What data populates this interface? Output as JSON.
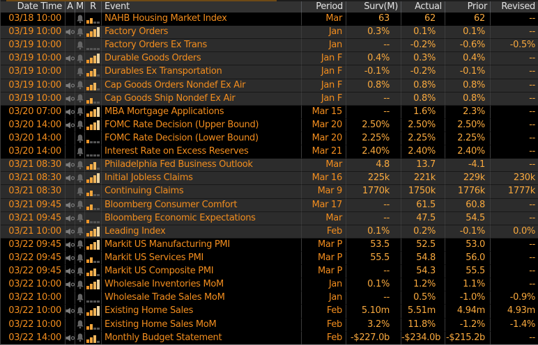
{
  "colors": {
    "background": "#000000",
    "row_alt": "#2c2c2c",
    "header_bg": "#323232",
    "header_text": "#e2e2e2",
    "label_orange": "#f28d1e",
    "value_amber": "#f9a93e",
    "relevance_bar_colors": [
      "#f09526",
      "#f2a73e",
      "#f0b65c",
      "#ecd3a0"
    ],
    "relevance_unlit": "#555555",
    "icon_gray": "#7a7a7a",
    "top_strip_brown": "#6e4a15"
  },
  "icons": {
    "muted_speaker": "muted-speaker-icon",
    "alarm_bell": "alarm-bell-icon",
    "relevance": "relevance-bars-icon"
  },
  "table": {
    "columns": [
      "Date Time",
      "A",
      "M",
      "R",
      "Event",
      "Period",
      "Surv(M)",
      "Actual",
      "Prior",
      "Revised"
    ],
    "rows": [
      {
        "date_time": "03/18 10:00",
        "speaker": false,
        "bell": true,
        "relevance": 2,
        "event": "NAHB Housing Market Index",
        "period": "Mar",
        "surv": "63",
        "actual": "62",
        "prior": "62",
        "revised": "--",
        "shade": "dark"
      },
      {
        "date_time": "03/19 10:00",
        "speaker": true,
        "bell": true,
        "relevance": 4,
        "event": "Factory Orders",
        "period": "Jan",
        "surv": "0.3%",
        "actual": "0.1%",
        "prior": "0.1%",
        "revised": "--",
        "shade": "light"
      },
      {
        "date_time": "03/19 10:00",
        "speaker": false,
        "bell": true,
        "relevance": 0,
        "event": "Factory Orders Ex Trans",
        "period": "Jan",
        "surv": "--",
        "actual": "-0.2%",
        "prior": "-0.6%",
        "revised": "-0.5%",
        "shade": "light"
      },
      {
        "date_time": "03/19 10:00",
        "speaker": true,
        "bell": true,
        "relevance": 4,
        "event": "Durable Goods Orders",
        "period": "Jan F",
        "surv": "0.4%",
        "actual": "0.3%",
        "prior": "0.4%",
        "revised": "--",
        "shade": "light"
      },
      {
        "date_time": "03/19 10:00",
        "speaker": false,
        "bell": true,
        "relevance": 3,
        "event": "Durables Ex Transportation",
        "period": "Jan F",
        "surv": "-0.1%",
        "actual": "-0.2%",
        "prior": "-0.1%",
        "revised": "--",
        "shade": "light"
      },
      {
        "date_time": "03/19 10:00",
        "speaker": true,
        "bell": true,
        "relevance": 3,
        "event": "Cap Goods Orders Nondef Ex Air",
        "period": "Jan F",
        "surv": "0.8%",
        "actual": "0.8%",
        "prior": "0.8%",
        "revised": "--",
        "shade": "light"
      },
      {
        "date_time": "03/19 10:00",
        "speaker": true,
        "bell": true,
        "relevance": 2,
        "event": "Cap Goods Ship Nondef Ex Air",
        "period": "Jan F",
        "surv": "--",
        "actual": "0.8%",
        "prior": "0.8%",
        "revised": "--",
        "shade": "light"
      },
      {
        "date_time": "03/20 07:00",
        "speaker": true,
        "bell": true,
        "relevance": 4,
        "event": "MBA Mortgage Applications",
        "period": "Mar 15",
        "surv": "--",
        "actual": "1.6%",
        "prior": "2.3%",
        "revised": "--",
        "shade": "dark"
      },
      {
        "date_time": "03/20 14:00",
        "speaker": true,
        "bell": true,
        "relevance": 4,
        "event": "FOMC Rate Decision (Upper Bound)",
        "period": "Mar 20",
        "surv": "2.50%",
        "actual": "2.50%",
        "prior": "2.50%",
        "revised": "--",
        "shade": "dark"
      },
      {
        "date_time": "03/20 14:00",
        "speaker": false,
        "bell": true,
        "relevance": 1,
        "event": "FOMC Rate Decision (Lower Bound)",
        "period": "Mar 20",
        "surv": "2.25%",
        "actual": "2.25%",
        "prior": "2.25%",
        "revised": "--",
        "shade": "dark"
      },
      {
        "date_time": "03/20 14:00",
        "speaker": false,
        "bell": true,
        "relevance": 0,
        "event": "Interest Rate on Excess Reserves",
        "period": "Mar 21",
        "surv": "2.40%",
        "actual": "2.40%",
        "prior": "2.40%",
        "revised": "--",
        "shade": "dark"
      },
      {
        "date_time": "03/21 08:30",
        "speaker": true,
        "bell": true,
        "relevance": 3,
        "event": "Philadelphia Fed Business Outlook",
        "period": "Mar",
        "surv": "4.8",
        "actual": "13.7",
        "prior": "-4.1",
        "revised": "--",
        "shade": "light"
      },
      {
        "date_time": "03/21 08:30",
        "speaker": true,
        "bell": true,
        "relevance": 4,
        "event": "Initial Jobless Claims",
        "period": "Mar 16",
        "surv": "225k",
        "actual": "221k",
        "prior": "229k",
        "revised": "230k",
        "shade": "light"
      },
      {
        "date_time": "03/21 08:30",
        "speaker": false,
        "bell": true,
        "relevance": 2,
        "event": "Continuing Claims",
        "period": "Mar 9",
        "surv": "1770k",
        "actual": "1750k",
        "prior": "1776k",
        "revised": "1777k",
        "shade": "light"
      },
      {
        "date_time": "03/21 09:45",
        "speaker": true,
        "bell": true,
        "relevance": 2,
        "event": "Bloomberg Consumer Comfort",
        "period": "Mar 17",
        "surv": "--",
        "actual": "61.5",
        "prior": "60.8",
        "revised": "--",
        "shade": "light"
      },
      {
        "date_time": "03/21 09:45",
        "speaker": true,
        "bell": true,
        "relevance": 1,
        "event": "Bloomberg Economic Expectations",
        "period": "Mar",
        "surv": "--",
        "actual": "47.5",
        "prior": "54.5",
        "revised": "--",
        "shade": "light"
      },
      {
        "date_time": "03/21 10:00",
        "speaker": true,
        "bell": true,
        "relevance": 4,
        "event": "Leading Index",
        "period": "Feb",
        "surv": "0.1%",
        "actual": "0.2%",
        "prior": "-0.1%",
        "revised": "0.0%",
        "shade": "light"
      },
      {
        "date_time": "03/22 09:45",
        "speaker": true,
        "bell": true,
        "relevance": 4,
        "event": "Markit US Manufacturing PMI",
        "period": "Mar P",
        "surv": "53.5",
        "actual": "52.5",
        "prior": "53.0",
        "revised": "--",
        "shade": "dark"
      },
      {
        "date_time": "03/22 09:45",
        "speaker": true,
        "bell": true,
        "relevance": 2,
        "event": "Markit US Services PMI",
        "period": "Mar P",
        "surv": "55.5",
        "actual": "54.8",
        "prior": "56.0",
        "revised": "--",
        "shade": "dark"
      },
      {
        "date_time": "03/22 09:45",
        "speaker": true,
        "bell": true,
        "relevance": 3,
        "event": "Markit US Composite PMI",
        "period": "Mar P",
        "surv": "--",
        "actual": "54.3",
        "prior": "55.5",
        "revised": "--",
        "shade": "dark"
      },
      {
        "date_time": "03/22 10:00",
        "speaker": true,
        "bell": true,
        "relevance": 4,
        "event": "Wholesale Inventories MoM",
        "period": "Jan",
        "surv": "0.1%",
        "actual": "1.2%",
        "prior": "1.1%",
        "revised": "--",
        "shade": "dark"
      },
      {
        "date_time": "03/22 10:00",
        "speaker": false,
        "bell": true,
        "relevance": 0,
        "event": "Wholesale Trade Sales MoM",
        "period": "Jan",
        "surv": "--",
        "actual": "0.5%",
        "prior": "-1.0%",
        "revised": "-0.9%",
        "shade": "dark"
      },
      {
        "date_time": "03/22 10:00",
        "speaker": true,
        "bell": true,
        "relevance": 4,
        "event": "Existing Home Sales",
        "period": "Feb",
        "surv": "5.10m",
        "actual": "5.51m",
        "prior": "4.94m",
        "revised": "4.93m",
        "shade": "dark"
      },
      {
        "date_time": "03/22 10:00",
        "speaker": false,
        "bell": true,
        "relevance": 2,
        "event": "Existing Home Sales MoM",
        "period": "Feb",
        "surv": "3.2%",
        "actual": "11.8%",
        "prior": "-1.2%",
        "revised": "-1.4%",
        "shade": "dark"
      },
      {
        "date_time": "03/22 14:00",
        "speaker": true,
        "bell": true,
        "relevance": 3,
        "event": "Monthly Budget Statement",
        "period": "Feb",
        "surv": "-$227.0b",
        "actual": "-$234.0b",
        "prior": "-$215.2b",
        "revised": "--",
        "shade": "dark"
      }
    ]
  }
}
